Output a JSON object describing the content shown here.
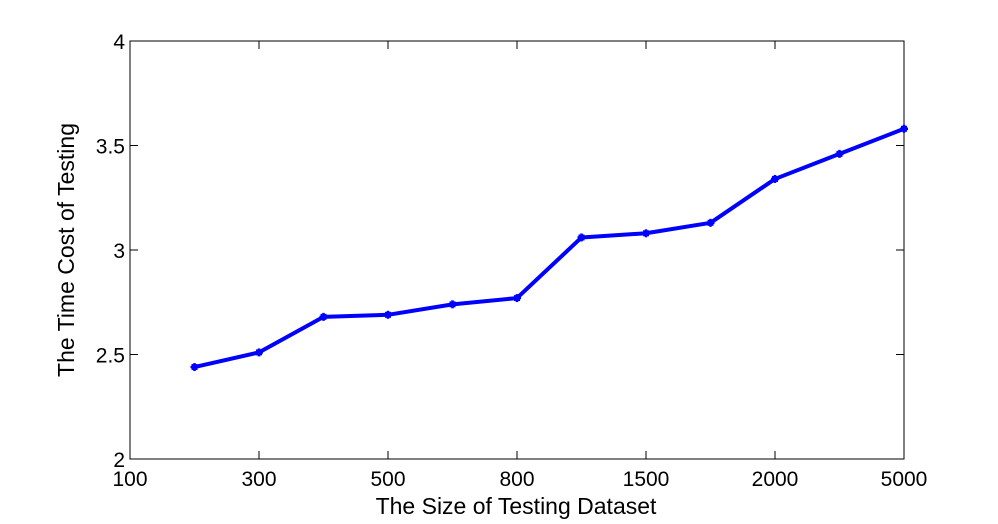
{
  "chart_data": {
    "type": "line",
    "title": "",
    "xlabel": "The Size of Testing Dataset",
    "ylabel": "The Time Cost of Testing",
    "x_tick_labels": [
      "100",
      "300",
      "500",
      "800",
      "1500",
      "2000",
      "5000"
    ],
    "y_ticks": [
      2,
      2.5,
      3,
      3.5,
      4
    ],
    "y_tick_labels": [
      "2",
      "2.5",
      "3",
      "3.5",
      "4"
    ],
    "ylim": [
      2,
      4
    ],
    "grid": false,
    "series": [
      {
        "x_index": [
          0.5,
          1,
          1.5,
          2,
          2.5,
          3,
          3.5,
          4,
          4.5,
          5,
          5.5,
          6
        ],
        "values": [
          2.44,
          2.51,
          2.68,
          2.69,
          2.74,
          2.77,
          3.06,
          3.08,
          3.13,
          3.34,
          3.46,
          3.58
        ],
        "color": "#0000ff"
      }
    ]
  }
}
